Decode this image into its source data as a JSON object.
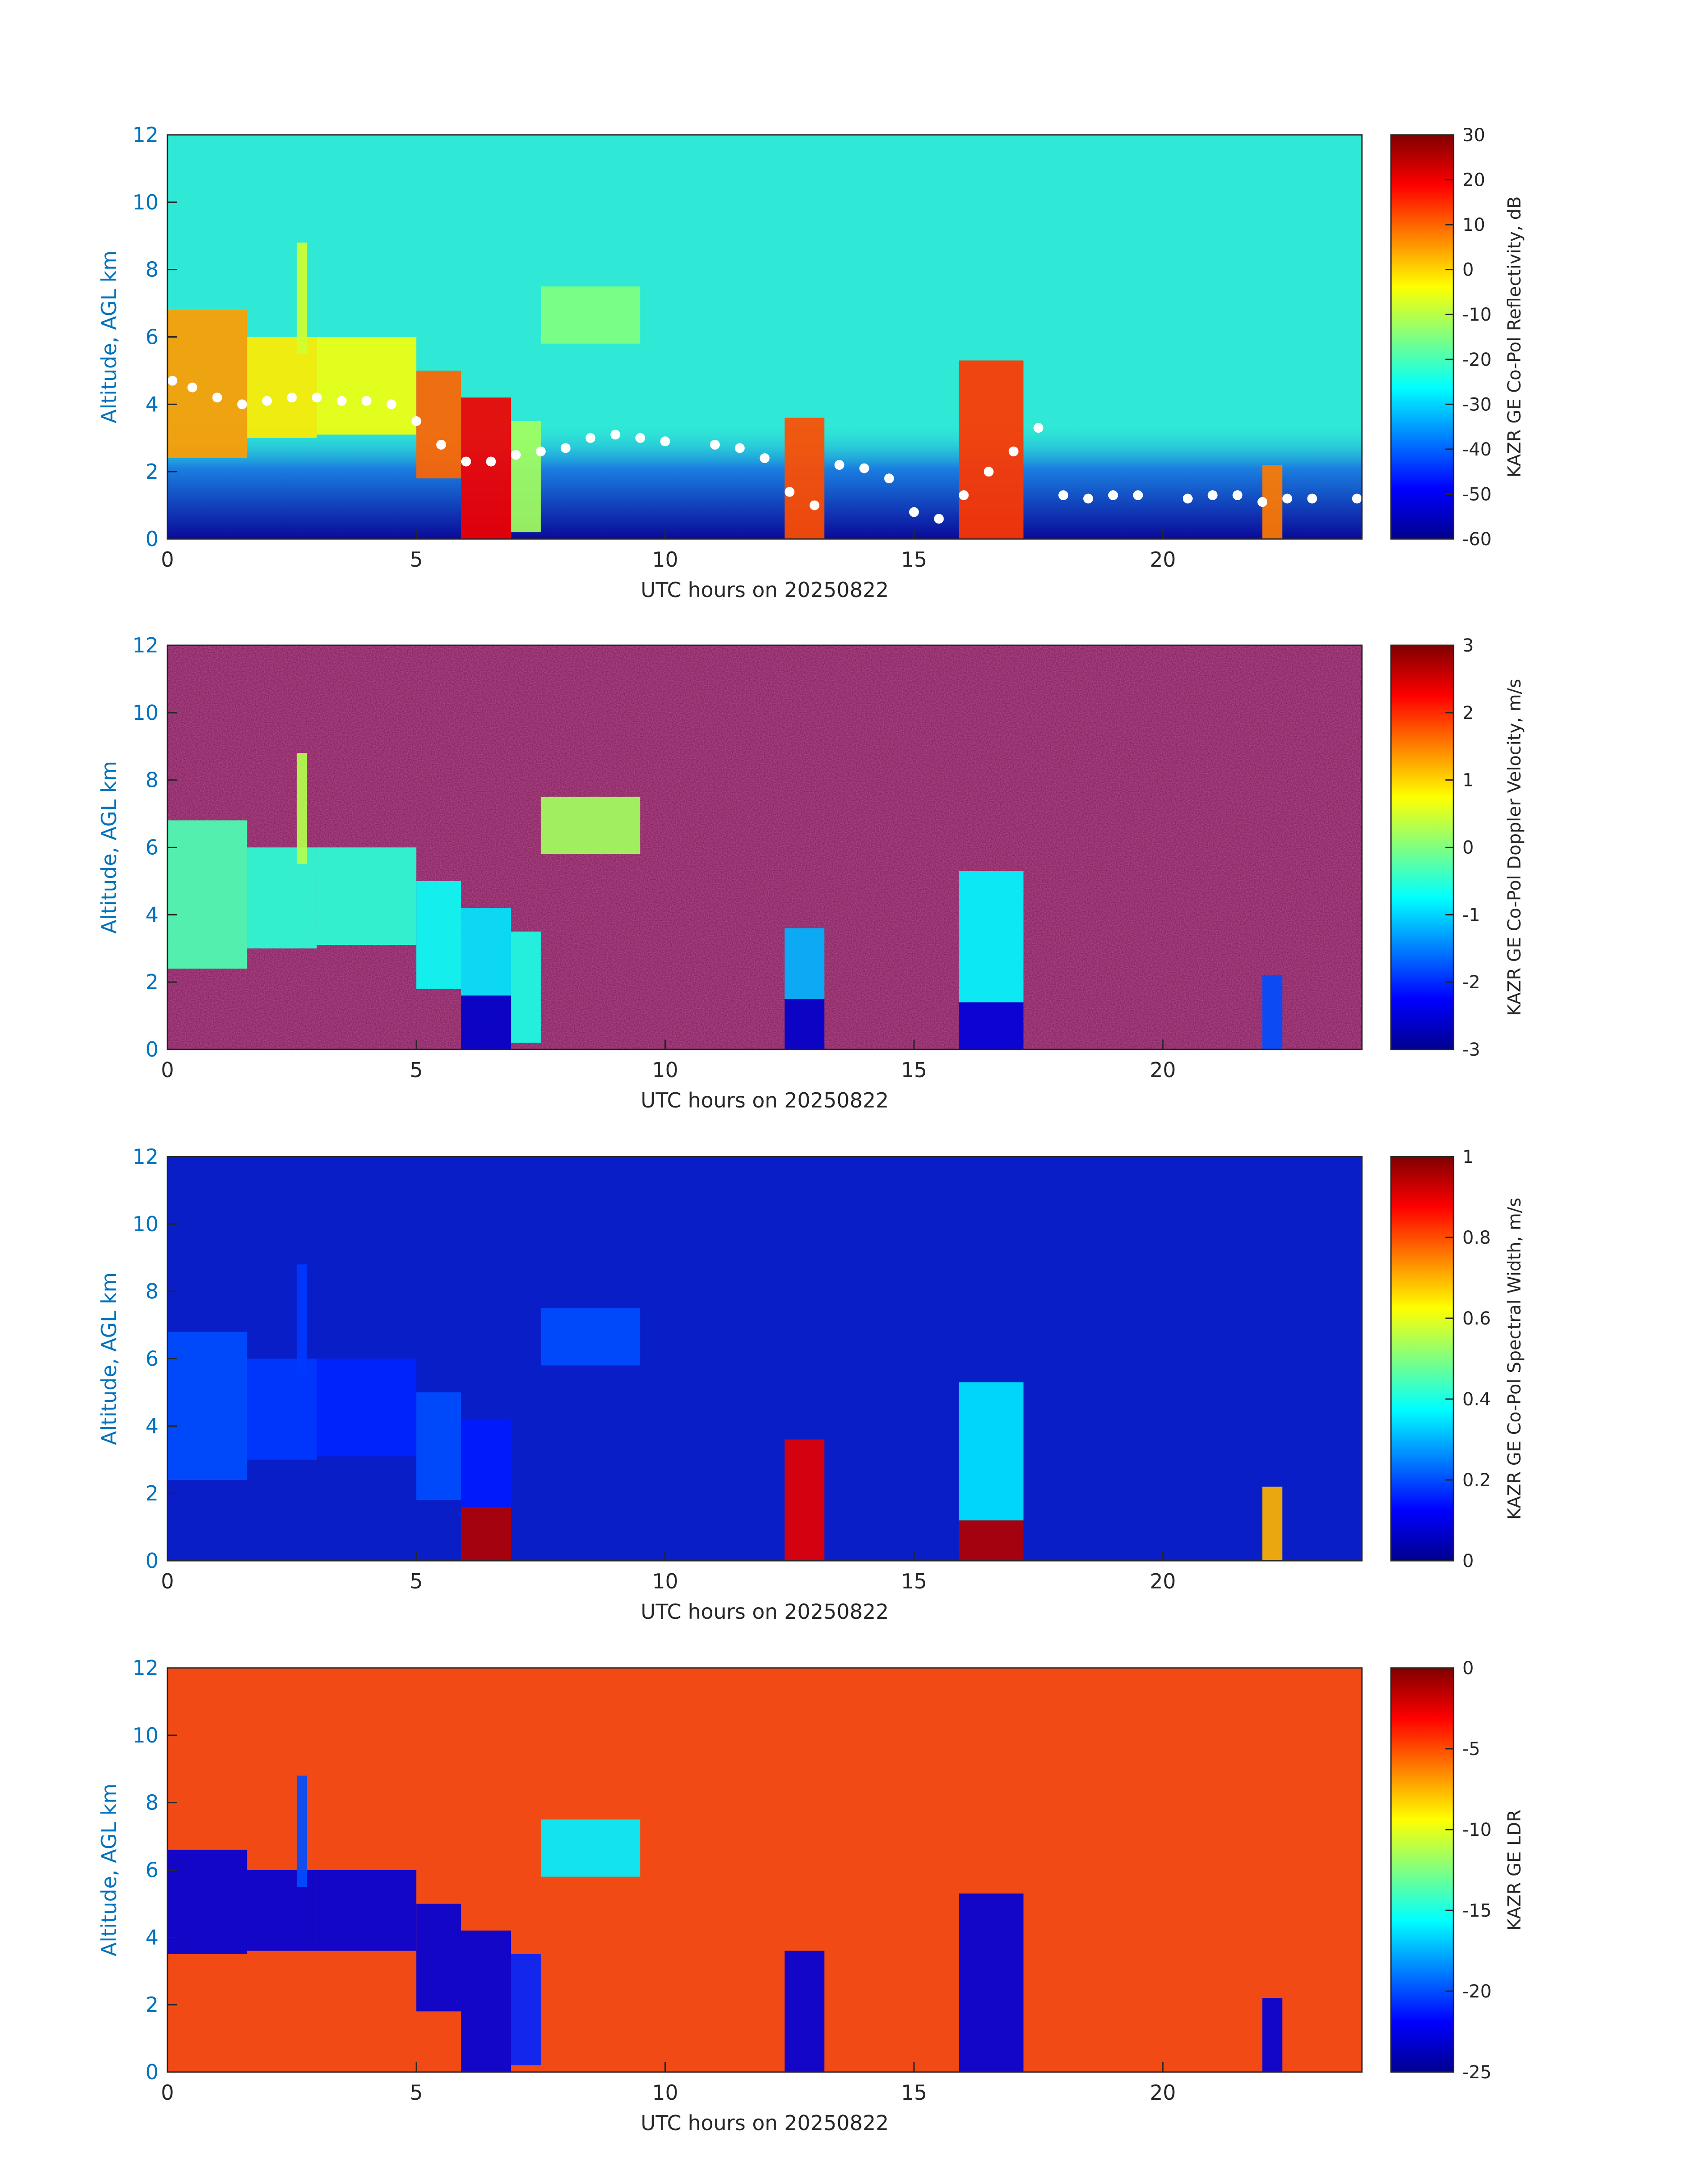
{
  "chart_data": [
    {
      "type": "heatmap",
      "title": "",
      "xlabel": "UTC hours on 20250822",
      "ylabel": "Altitude, AGL km",
      "xlim": [
        0,
        24
      ],
      "ylim": [
        0,
        12
      ],
      "xticks": [
        0,
        5,
        10,
        15,
        20
      ],
      "yticks": [
        0,
        2,
        4,
        6,
        8,
        10,
        12
      ],
      "colorbar": {
        "label": "KAZR GE Co-Pol Reflectivity, dB",
        "range": [
          -60,
          30
        ],
        "ticks": [
          -60,
          -50,
          -40,
          -30,
          -20,
          -10,
          0,
          10,
          20,
          30
        ]
      },
      "background": "#2fe9d6",
      "overlay": "white cloud-base dots",
      "features": [
        {
          "t0": 0.0,
          "t1": 1.6,
          "z0": 2.4,
          "z1": 6.8,
          "value": 5
        },
        {
          "t0": 1.6,
          "t1": 3.0,
          "z0": 3.0,
          "z1": 6.0,
          "value": -2
        },
        {
          "t0": 2.6,
          "t1": 2.8,
          "z0": 5.5,
          "z1": 8.8,
          "value": -8
        },
        {
          "t0": 3.0,
          "t1": 5.0,
          "z0": 3.1,
          "z1": 6.0,
          "value": -5
        },
        {
          "t0": 5.0,
          "t1": 5.9,
          "z0": 1.8,
          "z1": 5.0,
          "value": 10
        },
        {
          "t0": 5.9,
          "t1": 6.9,
          "z0": 0.0,
          "z1": 4.2,
          "value": 20
        },
        {
          "t0": 6.9,
          "t1": 7.5,
          "z0": 0.2,
          "z1": 3.5,
          "value": -12
        },
        {
          "t0": 7.5,
          "t1": 9.5,
          "z0": 5.8,
          "z1": 7.5,
          "value": -15
        },
        {
          "t0": 12.4,
          "t1": 13.2,
          "z0": 0.0,
          "z1": 3.6,
          "value": 12
        },
        {
          "t0": 15.9,
          "t1": 17.2,
          "z0": 0.0,
          "z1": 5.3,
          "value": 14
        },
        {
          "t0": 22.0,
          "t1": 22.4,
          "z0": 0.0,
          "z1": 2.2,
          "value": 8
        }
      ]
    },
    {
      "type": "heatmap",
      "title": "",
      "xlabel": "UTC hours on 20250822",
      "ylabel": "Altitude, AGL km",
      "xlim": [
        0,
        24
      ],
      "ylim": [
        0,
        12
      ],
      "xticks": [
        0,
        5,
        10,
        15,
        20
      ],
      "yticks": [
        0,
        2,
        4,
        6,
        8,
        10,
        12
      ],
      "colorbar": {
        "label": "KAZR GE Co-Pol Doppler Velocity, m/s",
        "range": [
          -3,
          3
        ],
        "ticks": [
          -3,
          -2,
          -1,
          0,
          1,
          2,
          3
        ]
      },
      "background": "noise",
      "features": [
        {
          "t0": 0.0,
          "t1": 1.6,
          "z0": 2.4,
          "z1": 6.8,
          "value": -0.3
        },
        {
          "t0": 1.6,
          "t1": 3.0,
          "z0": 3.0,
          "z1": 6.0,
          "value": -0.5
        },
        {
          "t0": 2.6,
          "t1": 2.8,
          "z0": 5.5,
          "z1": 8.8,
          "value": 0.3
        },
        {
          "t0": 3.0,
          "t1": 5.0,
          "z0": 3.1,
          "z1": 6.0,
          "value": -0.5
        },
        {
          "t0": 5.0,
          "t1": 5.9,
          "z0": 1.8,
          "z1": 5.0,
          "value": -0.7
        },
        {
          "t0": 5.9,
          "t1": 6.9,
          "z0": 0.0,
          "z1": 1.6,
          "value": -2.6
        },
        {
          "t0": 5.9,
          "t1": 6.9,
          "z0": 1.6,
          "z1": 4.2,
          "value": -0.9
        },
        {
          "t0": 6.9,
          "t1": 7.5,
          "z0": 0.2,
          "z1": 3.5,
          "value": -0.6
        },
        {
          "t0": 7.5,
          "t1": 9.5,
          "z0": 5.8,
          "z1": 7.5,
          "value": 0.2
        },
        {
          "t0": 12.4,
          "t1": 13.2,
          "z0": 0.0,
          "z1": 1.5,
          "value": -2.6
        },
        {
          "t0": 12.4,
          "t1": 13.2,
          "z0": 1.5,
          "z1": 3.6,
          "value": -1.2
        },
        {
          "t0": 15.9,
          "t1": 17.2,
          "z0": 0.0,
          "z1": 1.4,
          "value": -2.5
        },
        {
          "t0": 15.9,
          "t1": 17.2,
          "z0": 1.4,
          "z1": 5.3,
          "value": -0.8
        },
        {
          "t0": 22.0,
          "t1": 22.4,
          "z0": 0.0,
          "z1": 2.2,
          "value": -1.8
        }
      ]
    },
    {
      "type": "heatmap",
      "title": "",
      "xlabel": "UTC hours on 20250822",
      "ylabel": "Altitude, AGL km",
      "xlim": [
        0,
        24
      ],
      "ylim": [
        0,
        12
      ],
      "xticks": [
        0,
        5,
        10,
        15,
        20
      ],
      "yticks": [
        0,
        2,
        4,
        6,
        8,
        10,
        12
      ],
      "colorbar": {
        "label": "KAZR GE Co-Pol Spectral Width, m/s",
        "range": [
          0,
          1
        ],
        "ticks": [
          0,
          0.2,
          0.4,
          0.6,
          0.8,
          1
        ]
      },
      "background": "#0a1ec8",
      "features": [
        {
          "t0": 0.0,
          "t1": 1.6,
          "z0": 2.4,
          "z1": 6.8,
          "value": 0.2
        },
        {
          "t0": 1.6,
          "t1": 3.0,
          "z0": 3.0,
          "z1": 6.0,
          "value": 0.18
        },
        {
          "t0": 2.6,
          "t1": 2.8,
          "z0": 5.5,
          "z1": 8.8,
          "value": 0.18
        },
        {
          "t0": 3.0,
          "t1": 5.0,
          "z0": 3.1,
          "z1": 6.0,
          "value": 0.16
        },
        {
          "t0": 5.0,
          "t1": 5.9,
          "z0": 1.8,
          "z1": 5.0,
          "value": 0.2
        },
        {
          "t0": 5.9,
          "t1": 6.9,
          "z0": 0.0,
          "z1": 1.6,
          "value": 0.95
        },
        {
          "t0": 5.9,
          "t1": 6.9,
          "z0": 1.6,
          "z1": 4.2,
          "value": 0.15
        },
        {
          "t0": 7.5,
          "t1": 9.5,
          "z0": 5.8,
          "z1": 7.5,
          "value": 0.2
        },
        {
          "t0": 12.4,
          "t1": 13.2,
          "z0": 0.0,
          "z1": 3.6,
          "value": 0.9
        },
        {
          "t0": 15.9,
          "t1": 17.2,
          "z0": 0.0,
          "z1": 1.2,
          "value": 0.95
        },
        {
          "t0": 15.9,
          "t1": 17.2,
          "z0": 1.2,
          "z1": 5.3,
          "value": 0.35
        },
        {
          "t0": 22.0,
          "t1": 22.4,
          "z0": 0.0,
          "z1": 2.2,
          "value": 0.7
        }
      ]
    },
    {
      "type": "heatmap",
      "title": "",
      "xlabel": "UTC hours on 20250822",
      "ylabel": "Altitude, AGL km",
      "xlim": [
        0,
        24
      ],
      "ylim": [
        0,
        12
      ],
      "xticks": [
        0,
        5,
        10,
        15,
        20
      ],
      "yticks": [
        0,
        2,
        4,
        6,
        8,
        10,
        12
      ],
      "colorbar": {
        "label": "KAZR GE LDR",
        "range": [
          -25,
          0
        ],
        "ticks": [
          -25,
          -20,
          -15,
          -10,
          -5,
          0
        ]
      },
      "background": "#f24a15",
      "features": [
        {
          "t0": 0.0,
          "t1": 1.6,
          "z0": 3.5,
          "z1": 6.6,
          "value": -23
        },
        {
          "t0": 1.6,
          "t1": 3.0,
          "z0": 3.6,
          "z1": 6.0,
          "value": -23
        },
        {
          "t0": 2.6,
          "t1": 2.8,
          "z0": 5.5,
          "z1": 8.8,
          "value": -20
        },
        {
          "t0": 3.0,
          "t1": 5.0,
          "z0": 3.6,
          "z1": 6.0,
          "value": -23
        },
        {
          "t0": 5.0,
          "t1": 5.9,
          "z0": 1.8,
          "z1": 5.0,
          "value": -23
        },
        {
          "t0": 5.9,
          "t1": 6.9,
          "z0": 0.0,
          "z1": 4.2,
          "value": -23
        },
        {
          "t0": 6.9,
          "t1": 7.5,
          "z0": 0.2,
          "z1": 3.5,
          "value": -21
        },
        {
          "t0": 7.5,
          "t1": 9.5,
          "z0": 5.8,
          "z1": 7.5,
          "value": -16
        },
        {
          "t0": 12.4,
          "t1": 13.2,
          "z0": 0.0,
          "z1": 3.6,
          "value": -23
        },
        {
          "t0": 15.9,
          "t1": 17.2,
          "z0": 0.0,
          "z1": 5.3,
          "value": -23
        },
        {
          "t0": 22.0,
          "t1": 22.4,
          "z0": 0.0,
          "z1": 2.2,
          "value": -23
        }
      ]
    }
  ]
}
